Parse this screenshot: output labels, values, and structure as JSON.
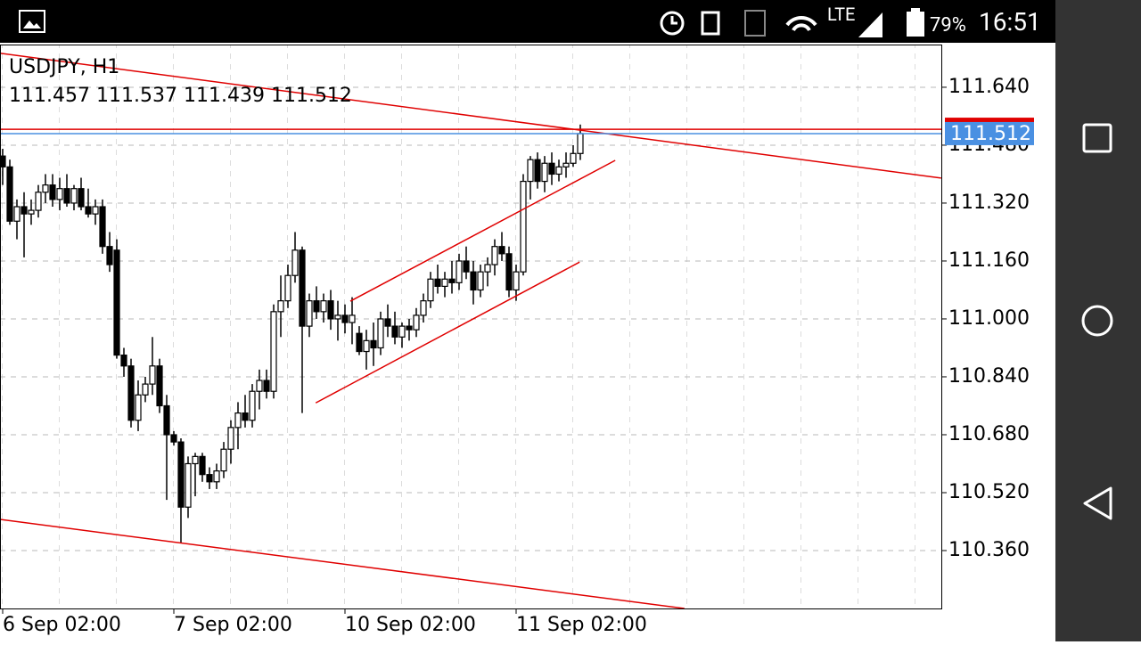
{
  "status_bar": {
    "network": "LTE",
    "battery": "79%",
    "time": "16:51"
  },
  "chart_data": {
    "type": "candlestick",
    "title": "USDJPY, H1",
    "color": "#000000",
    "grid": true,
    "candles": [
      [
        111.45,
        111.47,
        111.37,
        111.42
      ],
      [
        111.42,
        111.44,
        111.26,
        111.27
      ],
      [
        111.27,
        111.33,
        111.22,
        111.31
      ],
      [
        111.31,
        111.35,
        111.17,
        111.29
      ],
      [
        111.29,
        111.33,
        111.26,
        111.3
      ],
      [
        111.3,
        111.37,
        111.28,
        111.35
      ],
      [
        111.35,
        111.4,
        111.32,
        111.37
      ],
      [
        111.37,
        111.4,
        111.31,
        111.33
      ],
      [
        111.33,
        111.39,
        111.3,
        111.36
      ],
      [
        111.36,
        111.4,
        111.31,
        111.32
      ],
      [
        111.32,
        111.37,
        111.3,
        111.36
      ],
      [
        111.36,
        111.39,
        111.3,
        111.31
      ],
      [
        111.31,
        111.36,
        111.28,
        111.29
      ],
      [
        111.29,
        111.33,
        111.26,
        111.31
      ],
      [
        111.31,
        111.33,
        111.18,
        111.2
      ],
      [
        111.2,
        111.24,
        111.13,
        111.15
      ],
      [
        111.19,
        111.22,
        110.89,
        110.9
      ],
      [
        110.9,
        110.92,
        110.84,
        110.87
      ],
      [
        110.87,
        110.89,
        110.7,
        110.72
      ],
      [
        110.72,
        110.83,
        110.69,
        110.79
      ],
      [
        110.79,
        110.84,
        110.77,
        110.82
      ],
      [
        110.82,
        110.95,
        110.79,
        110.87
      ],
      [
        110.87,
        110.89,
        110.74,
        110.76
      ],
      [
        110.76,
        110.79,
        110.5,
        110.68
      ],
      [
        110.68,
        110.69,
        110.65,
        110.66
      ],
      [
        110.66,
        110.67,
        110.38,
        110.48
      ],
      [
        110.48,
        110.62,
        110.45,
        110.6
      ],
      [
        110.6,
        110.63,
        110.51,
        110.62
      ],
      [
        110.62,
        110.63,
        110.55,
        110.57
      ],
      [
        110.57,
        110.59,
        110.53,
        110.55
      ],
      [
        110.55,
        110.6,
        110.53,
        110.58
      ],
      [
        110.58,
        110.66,
        110.56,
        110.64
      ],
      [
        110.64,
        110.72,
        110.6,
        110.7
      ],
      [
        110.7,
        110.77,
        110.64,
        110.74
      ],
      [
        110.74,
        110.79,
        110.7,
        110.72
      ],
      [
        110.72,
        110.82,
        110.7,
        110.8
      ],
      [
        110.8,
        110.86,
        110.75,
        110.83
      ],
      [
        110.83,
        110.86,
        110.78,
        110.8
      ],
      [
        110.8,
        111.04,
        110.78,
        111.02
      ],
      [
        111.02,
        111.12,
        110.95,
        111.05
      ],
      [
        111.05,
        111.15,
        111.03,
        111.12
      ],
      [
        111.12,
        111.24,
        111.1,
        111.19
      ],
      [
        111.19,
        111.2,
        110.74,
        110.98
      ],
      [
        110.98,
        111.07,
        110.95,
        111.05
      ],
      [
        111.05,
        111.09,
        111.0,
        111.02
      ],
      [
        111.02,
        111.07,
        110.99,
        111.05
      ],
      [
        111.05,
        111.08,
        110.97,
        111.0
      ],
      [
        111.0,
        111.05,
        110.94,
        111.01
      ],
      [
        111.01,
        111.04,
        110.96,
        110.99
      ],
      [
        110.99,
        111.06,
        110.93,
        111.01
      ],
      [
        110.96,
        110.98,
        110.9,
        110.91
      ],
      [
        110.91,
        110.97,
        110.86,
        110.94
      ],
      [
        110.94,
        110.99,
        110.87,
        110.92
      ],
      [
        110.92,
        111.02,
        110.9,
        111.0
      ],
      [
        111.0,
        111.04,
        110.95,
        110.98
      ],
      [
        110.98,
        111.02,
        110.93,
        110.95
      ],
      [
        110.95,
        110.99,
        110.92,
        110.98
      ],
      [
        110.98,
        111.0,
        110.94,
        110.97
      ],
      [
        110.97,
        111.03,
        110.95,
        111.01
      ],
      [
        111.01,
        111.07,
        110.99,
        111.05
      ],
      [
        111.05,
        111.13,
        111.03,
        111.11
      ],
      [
        111.11,
        111.15,
        111.07,
        111.09
      ],
      [
        111.09,
        111.13,
        111.06,
        111.11
      ],
      [
        111.11,
        111.16,
        111.07,
        111.1
      ],
      [
        111.1,
        111.18,
        111.08,
        111.16
      ],
      [
        111.16,
        111.2,
        111.11,
        111.13
      ],
      [
        111.13,
        111.16,
        111.04,
        111.08
      ],
      [
        111.08,
        111.15,
        111.06,
        111.13
      ],
      [
        111.13,
        111.17,
        111.09,
        111.15
      ],
      [
        111.15,
        111.22,
        111.12,
        111.2
      ],
      [
        111.2,
        111.24,
        111.16,
        111.18
      ],
      [
        111.18,
        111.2,
        111.06,
        111.08
      ],
      [
        111.08,
        111.15,
        111.05,
        111.13
      ],
      [
        111.13,
        111.4,
        111.12,
        111.38
      ],
      [
        111.38,
        111.45,
        111.33,
        111.44
      ],
      [
        111.44,
        111.46,
        111.36,
        111.38
      ],
      [
        111.38,
        111.45,
        111.35,
        111.43
      ],
      [
        111.43,
        111.46,
        111.37,
        111.4
      ],
      [
        111.4,
        111.44,
        111.38,
        111.42
      ],
      [
        111.42,
        111.46,
        111.39,
        111.43
      ],
      [
        111.43,
        111.48,
        111.42,
        111.457
      ],
      [
        111.457,
        111.537,
        111.439,
        111.512
      ]
    ],
    "xlim": [
      -0.375,
      131.625
    ],
    "ylim": [
      110.2,
      111.758
    ],
    "xticks": [
      {
        "value": 0,
        "label": "6 Sep 02:00"
      },
      {
        "value": 24,
        "label": "7 Sep 02:00"
      },
      {
        "value": 48,
        "label": "10 Sep 02:00"
      },
      {
        "value": 72,
        "label": "11 Sep 02:00"
      }
    ],
    "yticks": [
      {
        "value": 111.64,
        "label": "111.640"
      },
      {
        "value": 111.48,
        "label": "111.480"
      },
      {
        "value": 111.32,
        "label": "111.320"
      },
      {
        "value": 111.16,
        "label": "111.160"
      },
      {
        "value": 111,
        "label": "111.000"
      },
      {
        "value": 110.84,
        "label": "110.840"
      },
      {
        "value": 110.68,
        "label": "110.680"
      },
      {
        "value": 110.52,
        "label": "110.520"
      },
      {
        "value": 110.36,
        "label": "110.360"
      }
    ],
    "trendlines": [
      {
        "x": [
          -0.375,
          131.6
        ],
        "y": [
          111.734,
          111.389
        ],
        "color": "#e00000"
      },
      {
        "x": [
          -0.375,
          95.6
        ],
        "y": [
          110.446,
          110.2
        ],
        "color": "#e00000"
      },
      {
        "x": [
          48.75,
          85.9
        ],
        "y": [
          111.049,
          111.438
        ],
        "color": "#e00000"
      },
      {
        "x": [
          43.9,
          80.9
        ],
        "y": [
          110.768,
          111.157
        ],
        "color": "#e00000"
      }
    ],
    "ask": {
      "value": 111.524,
      "color": "#e00000"
    },
    "bid": {
      "value": 111.512,
      "color": "#4a90e2"
    }
  }
}
